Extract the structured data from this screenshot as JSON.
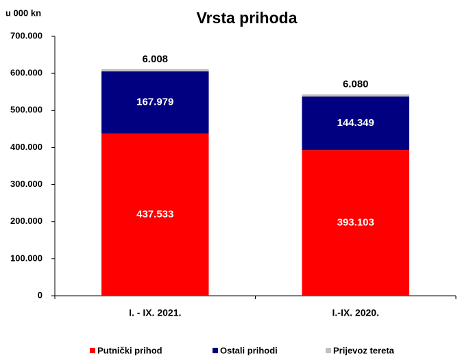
{
  "chart_data": {
    "type": "stacked_bar",
    "title": "Vrsta prihoda",
    "y_label": "u 000 kn",
    "categories": [
      "I. - IX. 2021.",
      "I.-IX. 2020."
    ],
    "series": [
      {
        "name": "Putnički prihod",
        "color": "#ff0000",
        "values": [
          437533,
          393103
        ],
        "value_labels": [
          "437.533",
          "393.103"
        ]
      },
      {
        "name": "Ostali prihodi",
        "color": "#000080",
        "values": [
          167979,
          144349
        ],
        "value_labels": [
          "167.979",
          "144.349"
        ]
      },
      {
        "name": "Prijevoz tereta",
        "color": "#c0c0c0",
        "values": [
          6008,
          6080
        ],
        "value_labels": [
          "6.008",
          "6.080"
        ]
      }
    ],
    "ylim": [
      0,
      700000
    ],
    "yticks": [
      0,
      {
        "value": 100000,
        "label": "100.000"
      },
      {
        "value": 200000,
        "label": "200.000"
      },
      {
        "value": 300000,
        "label": "300.000"
      },
      {
        "value": 400000,
        "label": "400.000"
      },
      {
        "value": 500000,
        "label": "500.000"
      },
      {
        "value": 600000,
        "label": "600.000"
      },
      {
        "value": 700000,
        "label": "700.000"
      }
    ],
    "grid": false,
    "legend": "bottom"
  }
}
